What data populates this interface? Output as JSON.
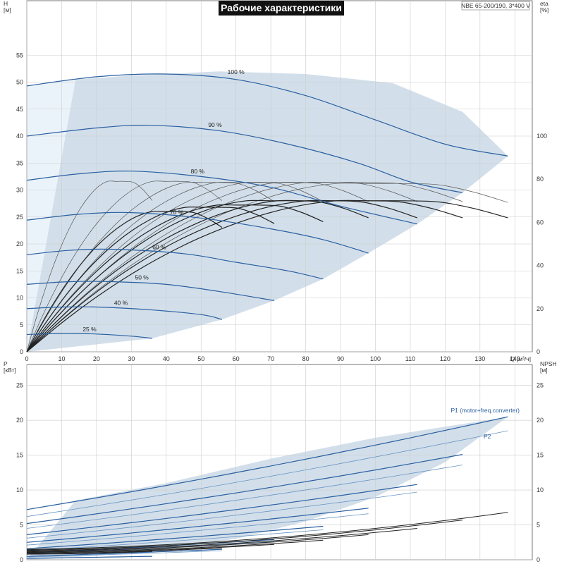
{
  "title": "Рабочие характеристики",
  "model": "NBE 65-200/190, 3*400 V",
  "colors": {
    "region": "#d2dfea",
    "region_light": "#ebf3fa",
    "curve_main": "#2a5fa0",
    "curve_thin": "#6a95c4",
    "eff_curve": "#222222",
    "grid": "#cccccc",
    "title_bg": "#111111"
  },
  "chart_data": [
    {
      "type": "line",
      "name": "head",
      "xlabel": "Q [м³/ч]",
      "ylabel_top": "H",
      "ylabel_bottom": "[м]",
      "y2label_top": "eta",
      "y2label_bottom": "[%]",
      "xlim": [
        0,
        145
      ],
      "ylim": [
        0,
        60
      ],
      "y2lim": [
        0,
        150
      ],
      "xticks": [
        0,
        10,
        20,
        30,
        40,
        50,
        60,
        70,
        80,
        90,
        100,
        110,
        120,
        130,
        140
      ],
      "yticks": [
        0,
        5,
        10,
        15,
        20,
        25,
        30,
        35,
        40,
        45,
        50,
        55
      ],
      "y2ticks": [
        0,
        20,
        40,
        60,
        80,
        100
      ],
      "operating_region": [
        [
          0,
          0
        ],
        [
          36,
          2.5
        ],
        [
          56,
          6
        ],
        [
          71,
          9.5
        ],
        [
          85,
          13.5
        ],
        [
          98,
          18.3
        ],
        [
          112,
          23.7
        ],
        [
          125,
          29.5
        ],
        [
          138,
          36.3
        ],
        [
          125,
          44.5
        ],
        [
          105,
          49.8
        ],
        [
          80,
          51.5
        ],
        [
          55,
          52
        ],
        [
          30,
          51.2
        ],
        [
          14,
          50.5
        ]
      ],
      "light_region": [
        [
          0,
          0
        ],
        [
          14,
          50.5
        ],
        [
          0,
          49.3
        ]
      ],
      "speed_curves": [
        {
          "label": "100 %",
          "points": [
            [
              0,
              49.3
            ],
            [
              20,
              51
            ],
            [
              40,
              51.5
            ],
            [
              60,
              50.5
            ],
            [
              80,
              47.5
            ],
            [
              100,
              43
            ],
            [
              120,
              38.5
            ],
            [
              138,
              36.3
            ]
          ]
        },
        {
          "label": "90 %",
          "points": [
            [
              0,
              40
            ],
            [
              20,
              41.5
            ],
            [
              35,
              42
            ],
            [
              55,
              41
            ],
            [
              75,
              38.5
            ],
            [
              95,
              35
            ],
            [
              110,
              31.5
            ],
            [
              125,
              29.5
            ]
          ]
        },
        {
          "label": "80 %",
          "points": [
            [
              0,
              31.8
            ],
            [
              15,
              33
            ],
            [
              30,
              33.5
            ],
            [
              50,
              32.5
            ],
            [
              70,
              30.5
            ],
            [
              90,
              27
            ],
            [
              112,
              23.7
            ]
          ]
        },
        {
          "label": "70 %",
          "points": [
            [
              0,
              24.4
            ],
            [
              15,
              25.5
            ],
            [
              30,
              25.8
            ],
            [
              50,
              24.8
            ],
            [
              70,
              22.8
            ],
            [
              85,
              20.8
            ],
            [
              98,
              18.3
            ]
          ]
        },
        {
          "label": "60 %",
          "points": [
            [
              0,
              18
            ],
            [
              12,
              18.8
            ],
            [
              25,
              19
            ],
            [
              45,
              18.2
            ],
            [
              60,
              16.6
            ],
            [
              75,
              15
            ],
            [
              85,
              13.5
            ]
          ]
        },
        {
          "label": "50 %",
          "points": [
            [
              0,
              12.5
            ],
            [
              12,
              13
            ],
            [
              25,
              13
            ],
            [
              40,
              12.5
            ],
            [
              55,
              11.2
            ],
            [
              71,
              9.5
            ]
          ]
        },
        {
          "label": "40 %",
          "points": [
            [
              0,
              8
            ],
            [
              10,
              8.3
            ],
            [
              20,
              8.3
            ],
            [
              35,
              7.8
            ],
            [
              50,
              6.9
            ],
            [
              56,
              6
            ]
          ]
        },
        {
          "label": "25 %",
          "points": [
            [
              0,
              3.2
            ],
            [
              10,
              3.4
            ],
            [
              20,
              3.3
            ],
            [
              30,
              2.9
            ],
            [
              36,
              2.5
            ]
          ]
        }
      ],
      "efficiency_curves": [
        {
          "max_q": 138,
          "eta_max": 78
        },
        {
          "max_q": 125,
          "eta_max": 78.5
        },
        {
          "max_q": 112,
          "eta_max": 78.5
        },
        {
          "max_q": 98,
          "eta_max": 78.5
        },
        {
          "max_q": 85,
          "eta_max": 78.5
        },
        {
          "max_q": 71,
          "eta_max": 78.5
        },
        {
          "max_q": 56,
          "eta_max": 79
        },
        {
          "max_q": 36,
          "eta_max": 79
        }
      ],
      "efficiency_curves_thick": [
        {
          "max_q": 138,
          "eta_max": 70
        },
        {
          "max_q": 125,
          "eta_max": 70
        },
        {
          "max_q": 112,
          "eta_max": 70
        },
        {
          "max_q": 98,
          "eta_max": 70
        },
        {
          "max_q": 85,
          "eta_max": 68
        },
        {
          "max_q": 71,
          "eta_max": 67
        },
        {
          "max_q": 56,
          "eta_max": 65
        }
      ]
    },
    {
      "type": "line",
      "name": "power",
      "ylabel_top": "P",
      "ylabel_bottom": "[кВт]",
      "y2label_top": "NPSH",
      "y2label_bottom": "[м]",
      "xlim": [
        0,
        145
      ],
      "ylim": [
        0,
        28
      ],
      "y2lim": [
        0,
        28
      ],
      "yticks": [
        0,
        5,
        10,
        15,
        20,
        25
      ],
      "y2ticks": [
        0,
        5,
        10,
        15,
        20,
        25
      ],
      "p1_label": "P1 (motor+freq.converter)",
      "p2_label": "P2",
      "power_region": [
        [
          0,
          0
        ],
        [
          14,
          8.5
        ],
        [
          40,
          11
        ],
        [
          70,
          14.5
        ],
        [
          100,
          17.5
        ],
        [
          138,
          20.5
        ],
        [
          120,
          14
        ],
        [
          100,
          9
        ],
        [
          80,
          5.5
        ],
        [
          60,
          3
        ],
        [
          40,
          1.5
        ],
        [
          20,
          0.6
        ],
        [
          5,
          0.1
        ]
      ],
      "p1_curves": [
        {
          "max_q": 138,
          "p0": 7.2,
          "pmax": 20.5
        },
        {
          "max_q": 125,
          "p0": 5.2,
          "pmax": 15.1
        },
        {
          "max_q": 112,
          "p0": 3.6,
          "pmax": 10.8
        },
        {
          "max_q": 98,
          "p0": 2.5,
          "pmax": 7.4
        },
        {
          "max_q": 85,
          "p0": 1.6,
          "pmax": 4.8
        },
        {
          "max_q": 71,
          "p0": 1.0,
          "pmax": 2.9
        },
        {
          "max_q": 56,
          "p0": 0.5,
          "pmax": 1.5
        },
        {
          "max_q": 36,
          "p0": 0.2,
          "pmax": 0.5
        }
      ],
      "p2_curves": [
        {
          "max_q": 138,
          "p0": 6.2,
          "pmax": 18.5
        },
        {
          "max_q": 125,
          "p0": 4.5,
          "pmax": 13.6
        },
        {
          "max_q": 112,
          "p0": 3.1,
          "pmax": 9.7
        },
        {
          "max_q": 98,
          "p0": 2.1,
          "pmax": 6.6
        },
        {
          "max_q": 85,
          "p0": 1.3,
          "pmax": 4.3
        },
        {
          "max_q": 71,
          "p0": 0.8,
          "pmax": 2.6
        },
        {
          "max_q": 56,
          "p0": 0.4,
          "pmax": 1.3
        }
      ],
      "npsh_curves": [
        {
          "max_q": 138,
          "n0": 1.5,
          "nmax": 6.8
        },
        {
          "max_q": 125,
          "n0": 1.4,
          "nmax": 5.7
        },
        {
          "max_q": 112,
          "n0": 1.3,
          "nmax": 4.5
        },
        {
          "max_q": 98,
          "n0": 1.2,
          "nmax": 3.6
        },
        {
          "max_q": 85,
          "n0": 1.1,
          "nmax": 2.8
        },
        {
          "max_q": 71,
          "n0": 1.0,
          "nmax": 2.2
        },
        {
          "max_q": 56,
          "n0": 0.9,
          "nmax": 1.7
        },
        {
          "max_q": 36,
          "n0": 0.8,
          "nmax": 1.2
        }
      ]
    }
  ]
}
